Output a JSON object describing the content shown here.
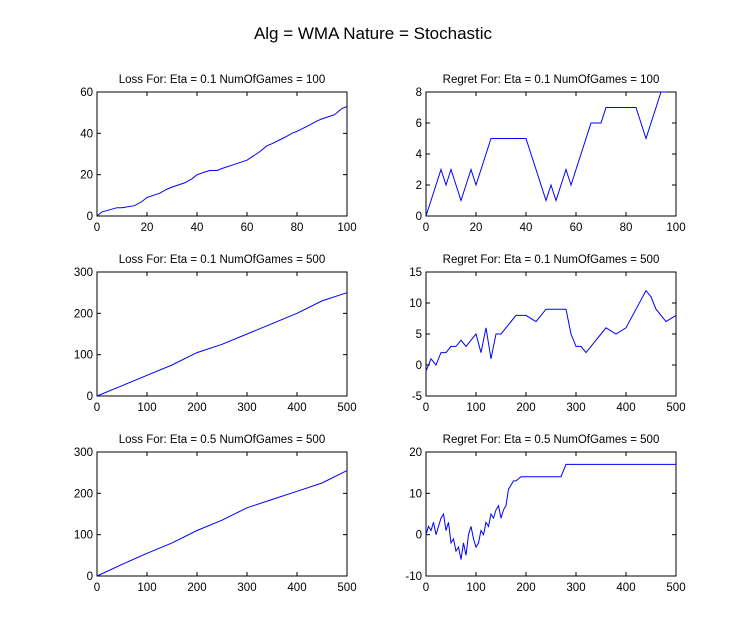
{
  "figure": {
    "title": "Alg = WMA Nature = Stochastic",
    "line_color": "#0000ff",
    "background": "#ffffff"
  },
  "chart_data": [
    {
      "type": "line",
      "title": "Loss For: Eta = 0.1 NumOfGames = 100",
      "xlabel": "",
      "ylabel": "",
      "xlim": [
        0,
        100
      ],
      "ylim": [
        0,
        60
      ],
      "xticks": [
        0,
        20,
        40,
        60,
        80,
        100
      ],
      "yticks": [
        0,
        20,
        40,
        60
      ],
      "grid": false,
      "series": [
        {
          "x": [
            0,
            2,
            5,
            8,
            10,
            15,
            18,
            20,
            25,
            28,
            30,
            35,
            38,
            40,
            45,
            48,
            50,
            55,
            60,
            65,
            68,
            70,
            75,
            78,
            80,
            85,
            88,
            90,
            95,
            98,
            100
          ],
          "y": [
            0,
            2,
            3,
            4,
            4,
            5,
            7,
            9,
            11,
            13,
            14,
            16,
            18,
            20,
            22,
            22,
            23,
            25,
            27,
            31,
            34,
            35,
            38,
            40,
            41,
            44,
            46,
            47,
            49,
            52,
            53
          ]
        }
      ]
    },
    {
      "type": "line",
      "title": "Regret For: Eta = 0.1 NumOfGames = 100",
      "xlabel": "",
      "ylabel": "",
      "xlim": [
        0,
        100
      ],
      "ylim": [
        0,
        8
      ],
      "xticks": [
        0,
        20,
        40,
        60,
        80,
        100
      ],
      "yticks": [
        0,
        2,
        4,
        6,
        8
      ],
      "grid": false,
      "series": [
        {
          "x": [
            0,
            2,
            4,
            6,
            8,
            10,
            12,
            14,
            16,
            18,
            20,
            22,
            24,
            26,
            28,
            30,
            35,
            40,
            42,
            44,
            46,
            48,
            50,
            52,
            54,
            56,
            58,
            60,
            62,
            64,
            66,
            68,
            70,
            72,
            74,
            76,
            78,
            80,
            82,
            84,
            86,
            88,
            90,
            92,
            94,
            96
          ],
          "y": [
            0,
            1,
            2,
            3,
            2,
            3,
            2,
            1,
            2,
            3,
            2,
            3,
            4,
            5,
            5,
            5,
            5,
            5,
            4,
            3,
            2,
            1,
            2,
            1,
            2,
            3,
            2,
            3,
            4,
            5,
            6,
            6,
            6,
            7,
            7,
            7,
            7,
            7,
            7,
            7,
            6,
            5,
            6,
            7,
            8,
            8
          ]
        }
      ]
    },
    {
      "type": "line",
      "title": "Loss For: Eta = 0.1 NumOfGames = 500",
      "xlabel": "",
      "ylabel": "",
      "xlim": [
        0,
        500
      ],
      "ylim": [
        0,
        300
      ],
      "xticks": [
        0,
        100,
        200,
        300,
        400,
        500
      ],
      "yticks": [
        0,
        100,
        200,
        300
      ],
      "grid": false,
      "series": [
        {
          "x": [
            0,
            50,
            100,
            150,
            200,
            250,
            300,
            350,
            400,
            450,
            500
          ],
          "y": [
            0,
            25,
            50,
            75,
            105,
            125,
            150,
            175,
            200,
            230,
            250
          ]
        }
      ]
    },
    {
      "type": "line",
      "title": "Regret For: Eta = 0.1 NumOfGames = 500",
      "xlabel": "",
      "ylabel": "",
      "xlim": [
        0,
        500
      ],
      "ylim": [
        -5,
        15
      ],
      "xticks": [
        0,
        100,
        200,
        300,
        400,
        500
      ],
      "yticks": [
        -5,
        0,
        5,
        10,
        15
      ],
      "grid": false,
      "series": [
        {
          "x": [
            0,
            10,
            20,
            30,
            40,
            50,
            60,
            70,
            80,
            90,
            100,
            110,
            120,
            130,
            140,
            150,
            160,
            180,
            200,
            220,
            240,
            260,
            280,
            290,
            300,
            310,
            320,
            330,
            340,
            350,
            360,
            380,
            400,
            420,
            440,
            450,
            460,
            480,
            500
          ],
          "y": [
            -1,
            1,
            0,
            2,
            2,
            3,
            3,
            4,
            3,
            4,
            5,
            2,
            6,
            1,
            5,
            5,
            6,
            8,
            8,
            7,
            9,
            9,
            9,
            5,
            3,
            3,
            2,
            3,
            4,
            5,
            6,
            5,
            6,
            9,
            12,
            11,
            9,
            7,
            8
          ]
        }
      ]
    },
    {
      "type": "line",
      "title": "Loss For: Eta = 0.5 NumOfGames = 500",
      "xlabel": "",
      "ylabel": "",
      "xlim": [
        0,
        500
      ],
      "ylim": [
        0,
        300
      ],
      "xticks": [
        0,
        100,
        200,
        300,
        400,
        500
      ],
      "yticks": [
        0,
        100,
        200,
        300
      ],
      "grid": false,
      "series": [
        {
          "x": [
            0,
            50,
            100,
            150,
            200,
            250,
            300,
            350,
            400,
            450,
            500
          ],
          "y": [
            0,
            28,
            55,
            80,
            110,
            135,
            165,
            185,
            205,
            225,
            255
          ]
        }
      ]
    },
    {
      "type": "line",
      "title": "Regret For: Eta = 0.5 NumOfGames = 500",
      "xlabel": "",
      "ylabel": "",
      "xlim": [
        0,
        500
      ],
      "ylim": [
        -10,
        20
      ],
      "xticks": [
        0,
        100,
        200,
        300,
        400,
        500
      ],
      "yticks": [
        -10,
        0,
        10,
        20
      ],
      "grid": false,
      "series": [
        {
          "x": [
            0,
            5,
            10,
            15,
            20,
            25,
            30,
            35,
            40,
            45,
            50,
            55,
            60,
            65,
            70,
            75,
            80,
            85,
            90,
            95,
            100,
            105,
            110,
            115,
            120,
            125,
            130,
            135,
            140,
            145,
            150,
            155,
            160,
            165,
            170,
            175,
            180,
            190,
            200,
            240,
            270,
            280,
            290,
            300,
            350,
            400,
            450,
            500
          ],
          "y": [
            0,
            2,
            1,
            3,
            0,
            2,
            4,
            5,
            1,
            3,
            -2,
            -1,
            -4,
            -3,
            -6,
            -2,
            -5,
            0,
            2,
            -1,
            -3,
            -2,
            1,
            0,
            3,
            2,
            5,
            4,
            6,
            7,
            4,
            6,
            7,
            11,
            12,
            13,
            13,
            14,
            14,
            14,
            14,
            17,
            17,
            17,
            17,
            17,
            17,
            17
          ]
        }
      ]
    }
  ]
}
